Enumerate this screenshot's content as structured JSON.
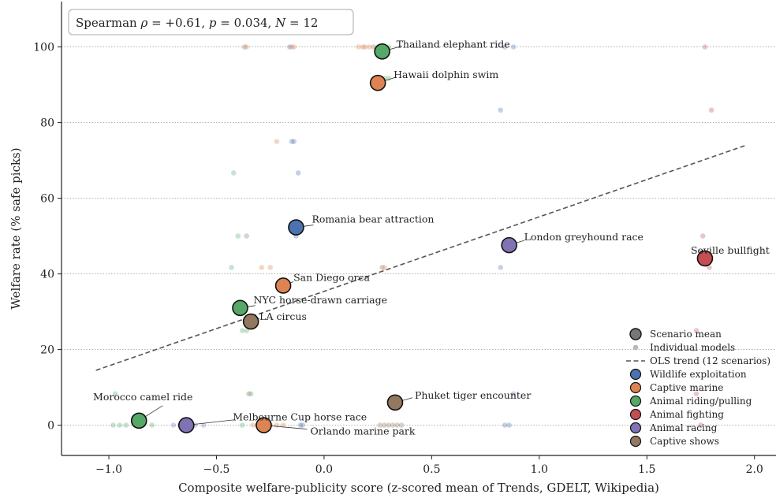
{
  "chart_data": {
    "type": "scatter",
    "title": "",
    "xlabel": "Composite welfare-publicity score (z-scored mean of Trends, GDELT, Wikipedia)",
    "ylabel": "Welfare rate (% safe picks)",
    "xlim": [
      -1.22,
      2.1
    ],
    "ylim": [
      -8,
      112
    ],
    "xticks": [
      -1.0,
      -0.5,
      0.0,
      0.5,
      1.0,
      1.5,
      2.0
    ],
    "xtick_labels": [
      "−1.0",
      "−0.5",
      "0.0",
      "0.5",
      "1.0",
      "1.5",
      "2.0"
    ],
    "yticks": [
      0,
      20,
      40,
      60,
      80,
      100
    ],
    "ytick_labels": [
      "0",
      "20",
      "40",
      "60",
      "80",
      "100"
    ],
    "grid": "horizontal dotted",
    "stats_box": {
      "prefix": "Spearman ",
      "rho_symbol": "ρ",
      "rho_text": " = +0.61,  ",
      "p_symbol": "p",
      "p_text": " = 0.034,  ",
      "n_symbol": "N",
      "n_text": " = 12"
    },
    "trend": {
      "name": "OLS trend (12 scenarios)",
      "points": [
        [
          -1.06,
          14.5
        ],
        [
          1.96,
          74.0
        ]
      ]
    },
    "categories": [
      {
        "key": "wildlife",
        "name": "Wildlife exploitation",
        "color": "#4c72b0"
      },
      {
        "key": "marine",
        "name": "Captive marine",
        "color": "#dd8452"
      },
      {
        "key": "riding",
        "name": "Animal riding/pulling",
        "color": "#55a868"
      },
      {
        "key": "fighting",
        "name": "Animal fighting",
        "color": "#c44e52"
      },
      {
        "key": "racing",
        "name": "Animal racing",
        "color": "#8172b3"
      },
      {
        "key": "shows",
        "name": "Captive shows",
        "color": "#937860"
      }
    ],
    "scenarios": [
      {
        "label": "Thailand elephant ride",
        "x": 0.27,
        "y": 98.8,
        "cat": "riding"
      },
      {
        "label": "Hawaii dolphin swim",
        "x": 0.25,
        "y": 90.5,
        "cat": "marine"
      },
      {
        "label": "Romania bear attraction",
        "x": -0.13,
        "y": 52.3,
        "cat": "wildlife"
      },
      {
        "label": "London greyhound race",
        "x": 0.86,
        "y": 47.6,
        "cat": "racing"
      },
      {
        "label": "Seville bullfight",
        "x": 1.77,
        "y": 44.1,
        "cat": "fighting"
      },
      {
        "label": "San Diego orca",
        "x": -0.19,
        "y": 36.9,
        "cat": "marine"
      },
      {
        "label": "NYC horse-drawn carriage",
        "x": -0.39,
        "y": 31.0,
        "cat": "riding"
      },
      {
        "label": "LA circus",
        "x": -0.34,
        "y": 27.4,
        "cat": "shows"
      },
      {
        "label": "Phuket tiger encounter",
        "x": 0.33,
        "y": 6.0,
        "cat": "shows"
      },
      {
        "label": "Morocco camel ride",
        "x": -0.86,
        "y": 1.2,
        "cat": "riding"
      },
      {
        "label": "Melbourne Cup horse race",
        "x": -0.64,
        "y": 0.0,
        "cat": "racing"
      },
      {
        "label": "Orlando marine park",
        "x": -0.28,
        "y": 0.0,
        "cat": "marine"
      }
    ],
    "models": [
      {
        "x": -0.37,
        "y": 100,
        "cat": "shows"
      },
      {
        "x": -0.36,
        "y": 100,
        "cat": "marine"
      },
      {
        "x": -0.16,
        "y": 100,
        "cat": "wildlife"
      },
      {
        "x": -0.15,
        "y": 100,
        "cat": "marine"
      },
      {
        "x": -0.14,
        "y": 100,
        "cat": "marine"
      },
      {
        "x": 0.16,
        "y": 100,
        "cat": "marine"
      },
      {
        "x": 0.18,
        "y": 100,
        "cat": "marine"
      },
      {
        "x": 0.19,
        "y": 100,
        "cat": "marine"
      },
      {
        "x": 0.21,
        "y": 100,
        "cat": "marine"
      },
      {
        "x": 0.23,
        "y": 100,
        "cat": "shows"
      },
      {
        "x": 0.25,
        "y": 100,
        "cat": "riding"
      },
      {
        "x": 0.3,
        "y": 100,
        "cat": "riding"
      },
      {
        "x": 0.84,
        "y": 100,
        "cat": "racing"
      },
      {
        "x": 0.88,
        "y": 100,
        "cat": "wildlife"
      },
      {
        "x": 1.77,
        "y": 100,
        "cat": "fighting"
      },
      {
        "x": 0.28,
        "y": 91.7,
        "cat": "riding"
      },
      {
        "x": 0.3,
        "y": 91.7,
        "cat": "riding"
      },
      {
        "x": 0.82,
        "y": 83.3,
        "cat": "wildlife"
      },
      {
        "x": 1.8,
        "y": 83.3,
        "cat": "fighting"
      },
      {
        "x": -0.22,
        "y": 75,
        "cat": "marine"
      },
      {
        "x": -0.15,
        "y": 75,
        "cat": "wildlife"
      },
      {
        "x": -0.14,
        "y": 75,
        "cat": "wildlife"
      },
      {
        "x": -0.42,
        "y": 66.7,
        "cat": "riding"
      },
      {
        "x": -0.12,
        "y": 66.7,
        "cat": "wildlife"
      },
      {
        "x": -0.4,
        "y": 50,
        "cat": "riding"
      },
      {
        "x": -0.36,
        "y": 50,
        "cat": "shows"
      },
      {
        "x": -0.13,
        "y": 50,
        "cat": "wildlife"
      },
      {
        "x": 1.76,
        "y": 50,
        "cat": "fighting"
      },
      {
        "x": -0.43,
        "y": 41.7,
        "cat": "riding"
      },
      {
        "x": -0.29,
        "y": 41.7,
        "cat": "marine"
      },
      {
        "x": -0.25,
        "y": 41.7,
        "cat": "marine"
      },
      {
        "x": 0.27,
        "y": 41.7,
        "cat": "shows"
      },
      {
        "x": 0.28,
        "y": 41.7,
        "cat": "marine"
      },
      {
        "x": 0.82,
        "y": 41.7,
        "cat": "wildlife"
      },
      {
        "x": 1.79,
        "y": 41.7,
        "cat": "fighting"
      },
      {
        "x": -0.38,
        "y": 25,
        "cat": "riding"
      },
      {
        "x": -0.36,
        "y": 25,
        "cat": "riding"
      },
      {
        "x": 1.73,
        "y": 25,
        "cat": "fighting"
      },
      {
        "x": -0.97,
        "y": 8.3,
        "cat": "riding"
      },
      {
        "x": -0.35,
        "y": 8.3,
        "cat": "shows"
      },
      {
        "x": -0.34,
        "y": 8.3,
        "cat": "riding"
      },
      {
        "x": 0.88,
        "y": 8.3,
        "cat": "racing"
      },
      {
        "x": 1.73,
        "y": 8.3,
        "cat": "fighting"
      },
      {
        "x": -0.98,
        "y": 0,
        "cat": "riding"
      },
      {
        "x": -0.95,
        "y": 0,
        "cat": "riding"
      },
      {
        "x": -0.92,
        "y": 0,
        "cat": "riding"
      },
      {
        "x": -0.88,
        "y": 0,
        "cat": "riding"
      },
      {
        "x": -0.84,
        "y": 0,
        "cat": "riding"
      },
      {
        "x": -0.8,
        "y": 0,
        "cat": "riding"
      },
      {
        "x": -0.7,
        "y": 0,
        "cat": "racing"
      },
      {
        "x": -0.67,
        "y": 0,
        "cat": "racing"
      },
      {
        "x": -0.62,
        "y": 0,
        "cat": "racing"
      },
      {
        "x": -0.6,
        "y": 0,
        "cat": "racing"
      },
      {
        "x": -0.56,
        "y": 0,
        "cat": "racing"
      },
      {
        "x": -0.38,
        "y": 0,
        "cat": "riding"
      },
      {
        "x": -0.33,
        "y": 0,
        "cat": "marine"
      },
      {
        "x": -0.31,
        "y": 0,
        "cat": "marine"
      },
      {
        "x": -0.25,
        "y": 0,
        "cat": "marine"
      },
      {
        "x": -0.22,
        "y": 0,
        "cat": "marine"
      },
      {
        "x": -0.19,
        "y": 0,
        "cat": "marine"
      },
      {
        "x": -0.11,
        "y": 0,
        "cat": "wildlife"
      },
      {
        "x": -0.1,
        "y": 0,
        "cat": "wildlife"
      },
      {
        "x": 0.26,
        "y": 0,
        "cat": "shows"
      },
      {
        "x": 0.28,
        "y": 0,
        "cat": "shows"
      },
      {
        "x": 0.3,
        "y": 0,
        "cat": "shows"
      },
      {
        "x": 0.32,
        "y": 0,
        "cat": "shows"
      },
      {
        "x": 0.34,
        "y": 0,
        "cat": "shows"
      },
      {
        "x": 0.36,
        "y": 0,
        "cat": "shows"
      },
      {
        "x": 0.84,
        "y": 0,
        "cat": "wildlife"
      },
      {
        "x": 0.86,
        "y": 0,
        "cat": "wildlife"
      },
      {
        "x": 1.75,
        "y": 0,
        "cat": "fighting"
      }
    ],
    "legend": {
      "position": "lower-right",
      "scenario_mean": "Scenario mean",
      "individual_models": "Individual models",
      "neutral_color": "#777777",
      "neutral_light": "#b8b8b8"
    }
  }
}
